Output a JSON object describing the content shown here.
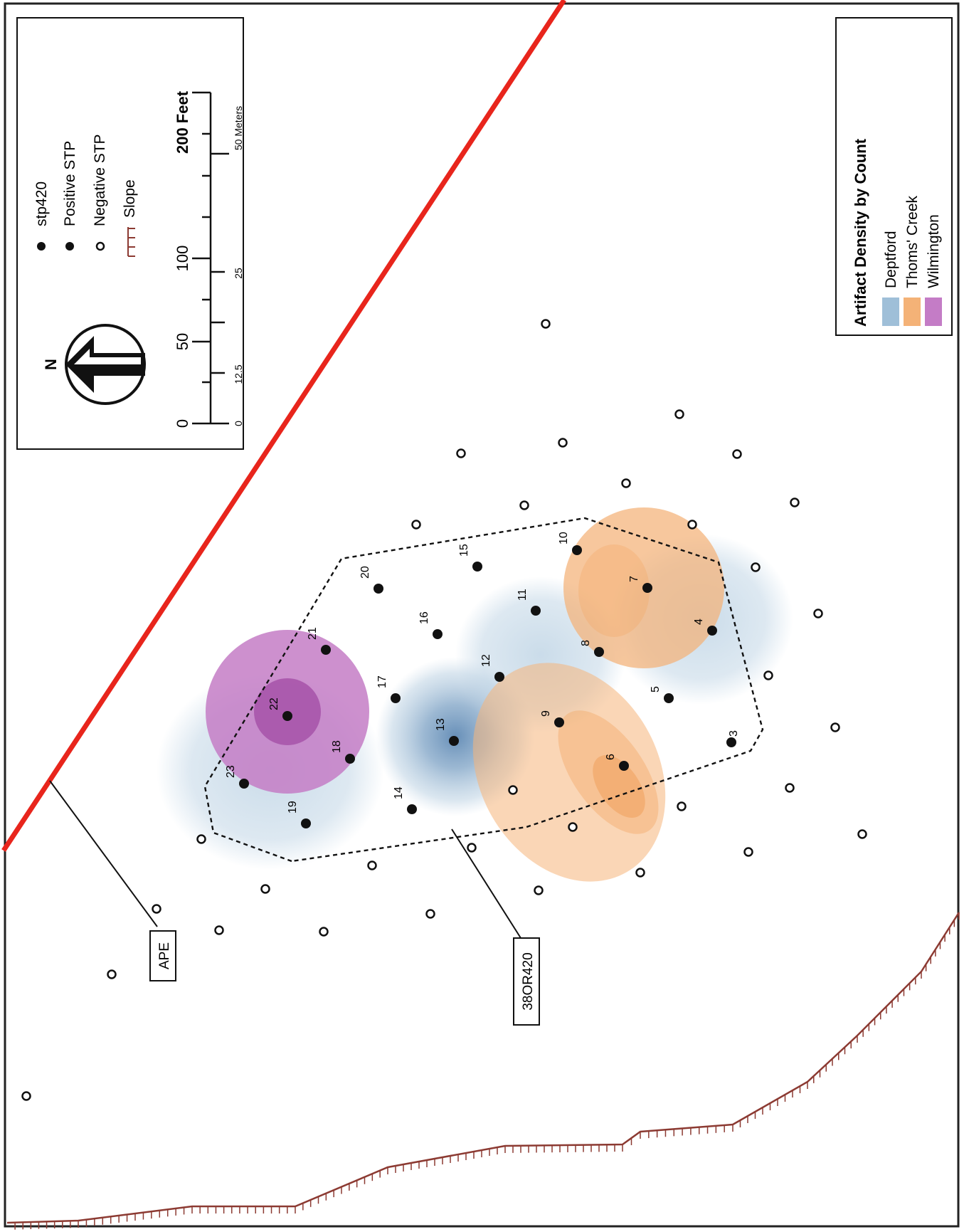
{
  "map": {
    "boundary_labels": {
      "ape": "APE",
      "site": "38OR420"
    },
    "colors": {
      "ape_line": "#e8251c",
      "slope": "#8c3a32",
      "deptford": "#9fbfd8",
      "thoms_creek": "#f4b277",
      "wilmington": "#b666b8"
    },
    "positive_stps": [
      {
        "label": "3"
      },
      {
        "label": "4"
      },
      {
        "label": "5"
      },
      {
        "label": "6"
      },
      {
        "label": "7"
      },
      {
        "label": "8"
      },
      {
        "label": "9"
      },
      {
        "label": "10"
      },
      {
        "label": "11"
      },
      {
        "label": "12"
      },
      {
        "label": "13"
      },
      {
        "label": "14"
      },
      {
        "label": "15"
      },
      {
        "label": "16"
      },
      {
        "label": "17"
      },
      {
        "label": "18"
      },
      {
        "label": "19"
      },
      {
        "label": "20"
      },
      {
        "label": "21"
      },
      {
        "label": "22"
      },
      {
        "label": "23"
      }
    ],
    "negative_stp_count": 40
  },
  "legend": {
    "items": [
      {
        "symbol": "filled-dot",
        "label": "stp420"
      },
      {
        "symbol": "filled-dot",
        "label": "Positive STP"
      },
      {
        "symbol": "open-circle",
        "label": "Negative STP"
      },
      {
        "symbol": "slope-line",
        "label": "Slope"
      }
    ],
    "north_label": "N",
    "scale_feet": {
      "ticks": [
        "0",
        "50",
        "100",
        "200 Feet"
      ]
    },
    "scale_meters": {
      "ticks": [
        "0",
        "12.5",
        "25",
        "50 Meters"
      ]
    }
  },
  "density_legend": {
    "title": "Artifact Density by Count",
    "items": [
      {
        "label": "Deptford",
        "color": "#9fbfd8"
      },
      {
        "label": "Thoms' Creek",
        "color": "#f4b277"
      },
      {
        "label": "Wilmington",
        "color": "#c47cc6"
      }
    ]
  }
}
